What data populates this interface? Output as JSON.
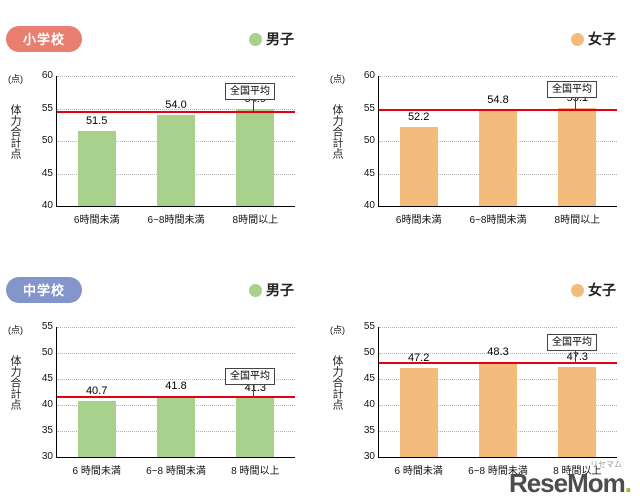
{
  "logo": {
    "kana": "リセマム",
    "text": "ReseMom",
    "dot": "."
  },
  "colors": {
    "red_line": "#e60012",
    "background": "#ffffff"
  },
  "chart_data": [
    {
      "id": "elementary-boys",
      "type": "bar",
      "section": "小学校",
      "section_color": "#e87f70",
      "legend_label": "男子",
      "legend_color": "#a9d18e",
      "unit": "(点)",
      "ylabel": "体力合計点",
      "ymin": 40,
      "ymax": 60,
      "yticks": [
        60,
        55,
        50,
        45,
        40
      ],
      "categories": [
        "6時間未満",
        "6~8時間未満",
        "8時間以上"
      ],
      "values": [
        51.5,
        54.0,
        54.9
      ],
      "value_labels": [
        "51.5",
        "54.0",
        "54.9"
      ],
      "bar_color": "#a9d18e",
      "avg": 54.5,
      "avg_label": "全国平均"
    },
    {
      "id": "elementary-girls",
      "type": "bar",
      "section": "",
      "section_color": "",
      "legend_label": "女子",
      "legend_color": "#f5bb7d",
      "unit": "(点)",
      "ylabel": "体力合計点",
      "ymin": 40,
      "ymax": 60,
      "yticks": [
        60,
        55,
        50,
        45,
        40
      ],
      "categories": [
        "6時間未満",
        "6~8時間未満",
        "8時間以上"
      ],
      "values": [
        52.2,
        54.8,
        55.1
      ],
      "value_labels": [
        "52.2",
        "54.8",
        "55.1"
      ],
      "bar_color": "#f5bb7d",
      "avg": 54.8,
      "avg_label": "全国平均"
    },
    {
      "id": "junior-boys",
      "type": "bar",
      "section": "中学校",
      "section_color": "#8495cb",
      "legend_label": "男子",
      "legend_color": "#a9d18e",
      "unit": "(点)",
      "ylabel": "体力合計点",
      "ymin": 30,
      "ymax": 55,
      "yticks": [
        55,
        50,
        45,
        40,
        35,
        30
      ],
      "categories": [
        "6 時間未満",
        "6~8 時間未満",
        "8 時間以上"
      ],
      "values": [
        40.7,
        41.8,
        41.3
      ],
      "value_labels": [
        "40.7",
        "41.8",
        "41.3"
      ],
      "bar_color": "#a9d18e",
      "avg": 41.6,
      "avg_label": "全国平均"
    },
    {
      "id": "junior-girls",
      "type": "bar",
      "section": "",
      "section_color": "",
      "legend_label": "女子",
      "legend_color": "#f5bb7d",
      "unit": "(点)",
      "ylabel": "体力合計点",
      "ymin": 30,
      "ymax": 55,
      "yticks": [
        55,
        50,
        45,
        40,
        35,
        30
      ],
      "categories": [
        "6 時間未満",
        "6~8 時間未満",
        "8 時間以上"
      ],
      "values": [
        47.2,
        48.3,
        47.3
      ],
      "value_labels": [
        "47.2",
        "48.3",
        "47.3"
      ],
      "bar_color": "#f5bb7d",
      "avg": 48.0,
      "avg_label": "全国平均"
    }
  ]
}
